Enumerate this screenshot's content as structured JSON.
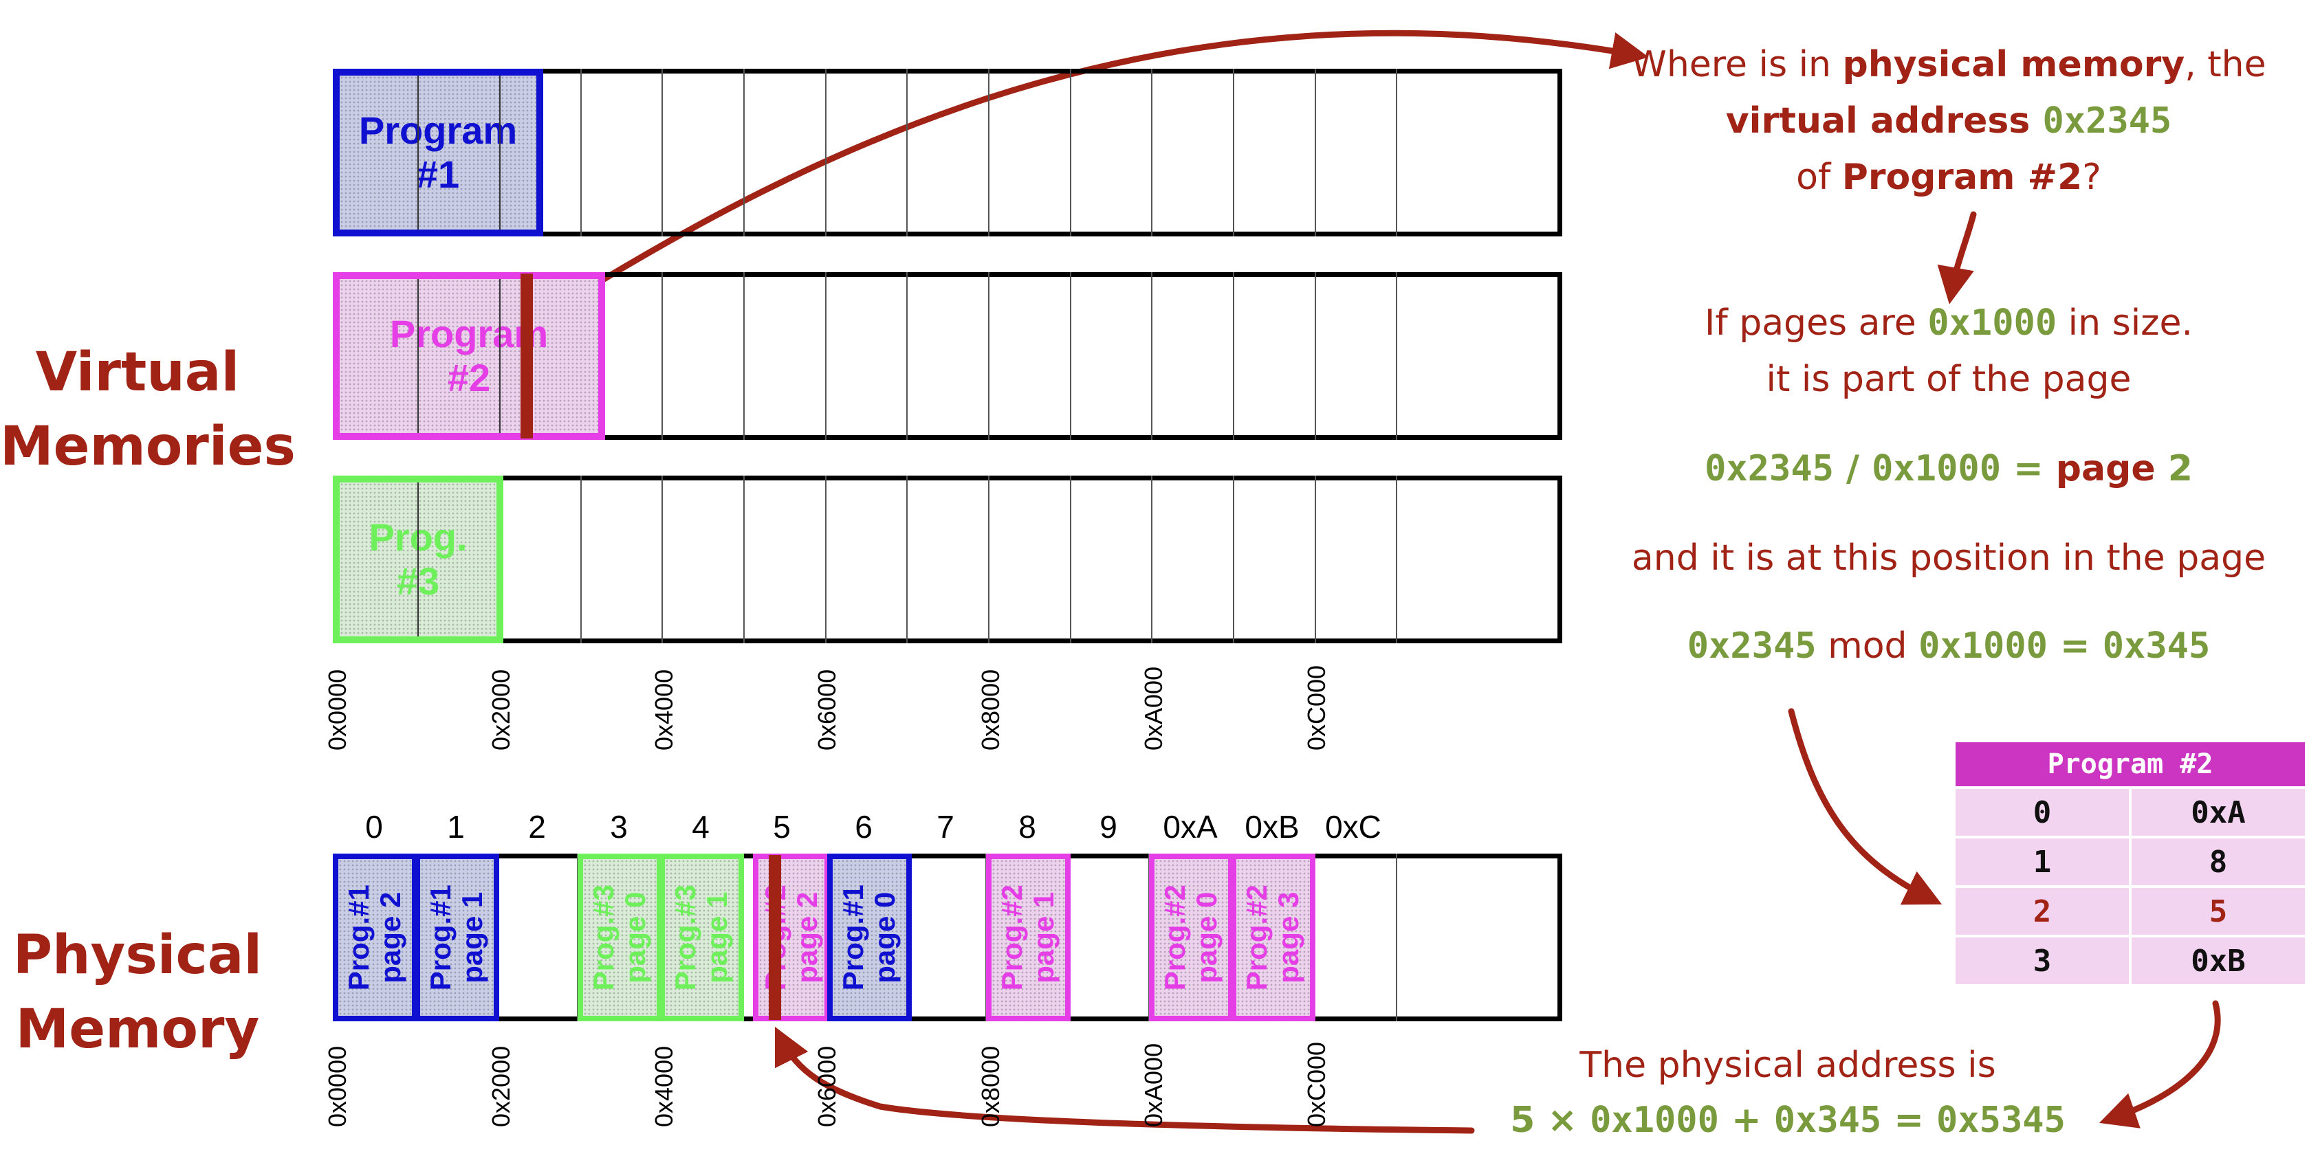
{
  "labels": {
    "virtual_memories": [
      "Virtual",
      "Memories"
    ],
    "physical_memory": [
      "Physical",
      "Memory"
    ]
  },
  "virtual": {
    "program1": [
      "Program",
      "#1"
    ],
    "program2": [
      "Program",
      "#2"
    ],
    "program3": [
      "Prog.",
      "#3"
    ],
    "ticks": [
      "0x0000",
      "0x2000",
      "0x4000",
      "0x6000",
      "0x8000",
      "0xA000",
      "0xC000"
    ]
  },
  "physical": {
    "frame_numbers": [
      "0",
      "1",
      "2",
      "3",
      "4",
      "5",
      "6",
      "7",
      "8",
      "9",
      "0xA",
      "0xB",
      "0xC"
    ],
    "ticks": [
      "0x0000",
      "0x2000",
      "0x4000",
      "0x6000",
      "0x8000",
      "0xA000",
      "0xC000"
    ],
    "cells": [
      {
        "prog": "Prog.#1",
        "page": "page 2",
        "color": "blue"
      },
      {
        "prog": "Prog.#1",
        "page": "page 1",
        "color": "blue"
      },
      {
        "prog": "Prog.#3",
        "page": "page 0",
        "color": "green"
      },
      {
        "prog": "Prog.#3",
        "page": "page 1",
        "color": "green"
      },
      {
        "prog": "Prog.#2",
        "page": "page 2",
        "color": "magenta"
      },
      {
        "prog": "Prog.#1",
        "page": "page 0",
        "color": "blue"
      },
      {
        "prog": "Prog.#2",
        "page": "page 1",
        "color": "magenta"
      },
      {
        "prog": "Prog.#2",
        "page": "page 0",
        "color": "magenta"
      },
      {
        "prog": "Prog.#2",
        "page": "page 3",
        "color": "magenta"
      }
    ]
  },
  "explanation": {
    "q1_a": "Where is in ",
    "q1_b": "physical memory",
    "q1_c": ", the",
    "q2_a": "virtual address ",
    "q2_b": "0x2345",
    "q3_a": "of ",
    "q3_b": "Program #2",
    "q3_c": "?",
    "p1_a": "If pages are ",
    "p1_b": "0x1000",
    "p1_c": " in size.",
    "p2": "it is part of the page",
    "eq1_a": "0x2345",
    "eq1_b": " / ",
    "eq1_c": "0x1000",
    "eq1_d": " = ",
    "eq1_e": "page",
    "eq1_f": " 2",
    "p3": "and it is at this position in the page",
    "eq2_a": "0x2345",
    "eq2_b": " mod ",
    "eq2_c": "0x1000",
    "eq2_d": " = ",
    "eq2_e": "0x345",
    "r1": "The physical address is",
    "r2_a": "5",
    "r2_b": " × ",
    "r2_c": "0x1000",
    "r2_d": " + ",
    "r2_e": "0x345",
    "r2_f": " = ",
    "r2_g": "0x5345"
  },
  "page_table": {
    "title": "Program #2",
    "rows": [
      [
        "0",
        "0xA"
      ],
      [
        "1",
        "8"
      ],
      [
        "2",
        "5"
      ],
      [
        "3",
        "0xB"
      ]
    ]
  },
  "colors": {
    "accent_red": "#a12316",
    "formula_green": "#7a9a3e",
    "program1_blue": "#1010d0",
    "program2_magenta": "#e63ee6",
    "program3_green": "#6ef05a",
    "table_header": "#cc35c2",
    "table_cell": "#f3d4f0"
  }
}
